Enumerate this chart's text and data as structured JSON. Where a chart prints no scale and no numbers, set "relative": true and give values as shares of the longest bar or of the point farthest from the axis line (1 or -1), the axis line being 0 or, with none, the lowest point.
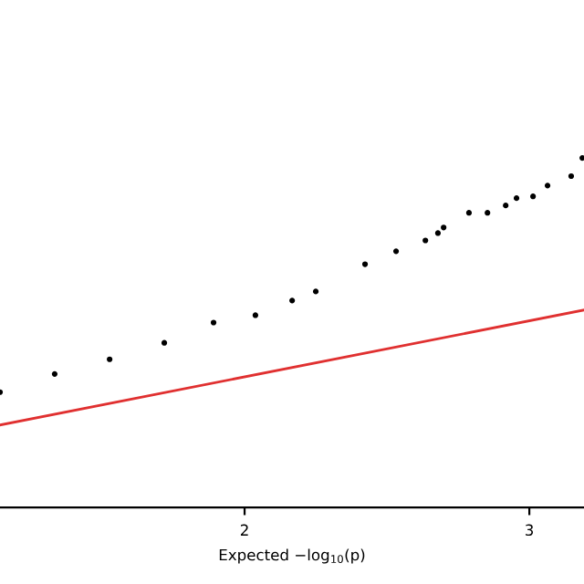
{
  "chart_data": {
    "type": "scatter",
    "xlabel": "Expected −log$_{10}$(p)",
    "relative": true,
    "xlim": [
      1.141,
      3.192
    ],
    "xticks": [
      2,
      3
    ],
    "tick_labels": "x",
    "grid": false,
    "series": [
      {
        "marker": "circle",
        "color": "#000000",
        "x": [
          1.141,
          1.333,
          1.526,
          1.718,
          1.891,
          2.038,
          2.167,
          2.25,
          2.423,
          2.532,
          2.635,
          2.679,
          2.699,
          2.788,
          2.853,
          2.917,
          2.955,
          3.013,
          3.064,
          3.147,
          3.186
        ],
        "values": [
          0.33,
          0.382,
          0.424,
          0.471,
          0.529,
          0.55,
          0.592,
          0.618,
          0.696,
          0.733,
          0.764,
          0.785,
          0.801,
          0.843,
          0.843,
          0.864,
          0.885,
          0.89,
          0.921,
          0.948,
          1.0
        ]
      },
      {
        "type": "line",
        "marker": "none",
        "color": "#e03030",
        "x": [
          1.141,
          3.192
        ],
        "values": [
          0.236,
          0.565
        ]
      }
    ]
  }
}
